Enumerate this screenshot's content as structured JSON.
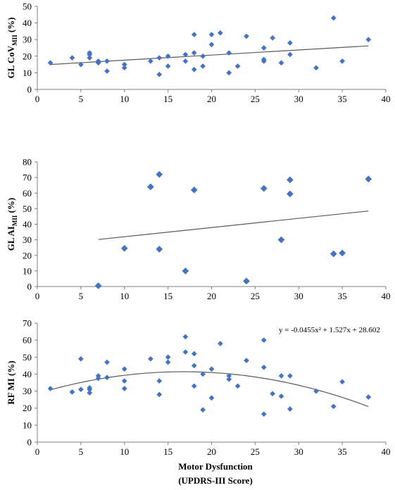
{
  "figure": {
    "xlabel_line1": "Motor Dysfunction",
    "xlabel_line2": "(UPDRS-III Score)",
    "marker_color": "#4472C4",
    "trend_color": "#595959"
  },
  "chart_data": [
    {
      "type": "scatter",
      "ylabel_main": "GL CoV",
      "ylabel_sub": "MII",
      "ylabel_unit": " (%)",
      "xlim": [
        0,
        40
      ],
      "ylim": [
        0,
        50
      ],
      "xticks": [
        "0",
        "5",
        "10",
        "15",
        "20",
        "25",
        "30",
        "35",
        "40"
      ],
      "yticks": [
        "0",
        "10",
        "20",
        "30",
        "40",
        "50"
      ],
      "trend": {
        "kind": "linear",
        "x": [
          1.5,
          38
        ],
        "y": [
          15.0,
          26.2
        ]
      },
      "points": [
        [
          1.5,
          16
        ],
        [
          4,
          19
        ],
        [
          5,
          15
        ],
        [
          6,
          22
        ],
        [
          6,
          21
        ],
        [
          6,
          19
        ],
        [
          7,
          16
        ],
        [
          7,
          17
        ],
        [
          8,
          11
        ],
        [
          8,
          17
        ],
        [
          10,
          15
        ],
        [
          10,
          13
        ],
        [
          13,
          17
        ],
        [
          14,
          9
        ],
        [
          14,
          19
        ],
        [
          15,
          20
        ],
        [
          15,
          14
        ],
        [
          17,
          21
        ],
        [
          17,
          17
        ],
        [
          18,
          33
        ],
        [
          18,
          22
        ],
        [
          18,
          12
        ],
        [
          19,
          20
        ],
        [
          19,
          14
        ],
        [
          20,
          33
        ],
        [
          20,
          27
        ],
        [
          21,
          34
        ],
        [
          22,
          22
        ],
        [
          22,
          10
        ],
        [
          23,
          14
        ],
        [
          24,
          32
        ],
        [
          26,
          25
        ],
        [
          26,
          17
        ],
        [
          26,
          18
        ],
        [
          27,
          31
        ],
        [
          28,
          16
        ],
        [
          29,
          28
        ],
        [
          29,
          21
        ],
        [
          32,
          13
        ],
        [
          34,
          43
        ],
        [
          35,
          17
        ],
        [
          38,
          30
        ]
      ]
    },
    {
      "type": "scatter",
      "ylabel_main": "GL AI",
      "ylabel_sub": "MII",
      "ylabel_unit": " (%)",
      "xlim": [
        0,
        40
      ],
      "ylim": [
        0,
        80
      ],
      "xticks": [
        "0",
        "5",
        "10",
        "15",
        "20",
        "25",
        "30",
        "35",
        "40"
      ],
      "yticks": [
        "0",
        "10",
        "20",
        "30",
        "40",
        "50",
        "60",
        "70",
        "80"
      ],
      "trend": {
        "kind": "linear",
        "x": [
          7,
          38
        ],
        "y": [
          30.2,
          48.5
        ]
      },
      "points": [
        [
          7,
          0.5
        ],
        [
          10,
          24.5
        ],
        [
          13,
          64
        ],
        [
          14,
          72
        ],
        [
          14,
          24
        ],
        [
          17,
          10
        ],
        [
          18,
          62
        ],
        [
          24,
          3.5
        ],
        [
          26,
          63
        ],
        [
          28,
          30
        ],
        [
          29,
          68.5
        ],
        [
          29,
          59.5
        ],
        [
          34,
          21
        ],
        [
          35,
          21.5
        ],
        [
          38,
          69
        ]
      ]
    },
    {
      "type": "scatter",
      "ylabel_main": "RF MI",
      "ylabel_sub": "",
      "ylabel_unit": " (%)",
      "xlim": [
        0,
        40
      ],
      "ylim": [
        0,
        70
      ],
      "xticks": [
        "0",
        "5",
        "10",
        "15",
        "20",
        "25",
        "30",
        "35",
        "40"
      ],
      "yticks": [
        "0",
        "10",
        "20",
        "30",
        "40",
        "50",
        "60",
        "70"
      ],
      "equation": "y = -0.0455x² + 1.527x + 28.602",
      "trend": {
        "kind": "quadratic",
        "a": -0.0455,
        "b": 1.527,
        "c": 28.602,
        "x": [
          1.5,
          38
        ]
      },
      "points": [
        [
          1.5,
          31.5
        ],
        [
          4,
          29.5
        ],
        [
          5,
          49
        ],
        [
          5,
          31
        ],
        [
          6,
          32
        ],
        [
          6,
          29
        ],
        [
          6,
          31
        ],
        [
          7,
          39
        ],
        [
          7,
          37.5
        ],
        [
          8,
          47
        ],
        [
          8,
          38
        ],
        [
          10,
          43
        ],
        [
          10,
          36
        ],
        [
          10,
          31.5
        ],
        [
          13,
          49
        ],
        [
          14,
          36
        ],
        [
          14,
          28
        ],
        [
          15,
          50
        ],
        [
          15,
          47
        ],
        [
          17,
          62
        ],
        [
          17,
          53
        ],
        [
          18,
          52
        ],
        [
          18,
          45
        ],
        [
          18,
          33
        ],
        [
          19,
          40
        ],
        [
          19,
          19
        ],
        [
          20,
          43
        ],
        [
          20,
          26
        ],
        [
          21,
          58
        ],
        [
          22,
          37
        ],
        [
          22,
          39
        ],
        [
          23,
          33
        ],
        [
          24,
          48
        ],
        [
          26,
          60
        ],
        [
          26,
          44
        ],
        [
          26,
          16.5
        ],
        [
          27,
          28.5
        ],
        [
          28,
          39
        ],
        [
          28,
          27
        ],
        [
          29,
          39
        ],
        [
          29,
          19.5
        ],
        [
          32,
          30
        ],
        [
          34,
          21
        ],
        [
          35,
          35.5
        ],
        [
          38,
          26.5
        ]
      ]
    }
  ]
}
